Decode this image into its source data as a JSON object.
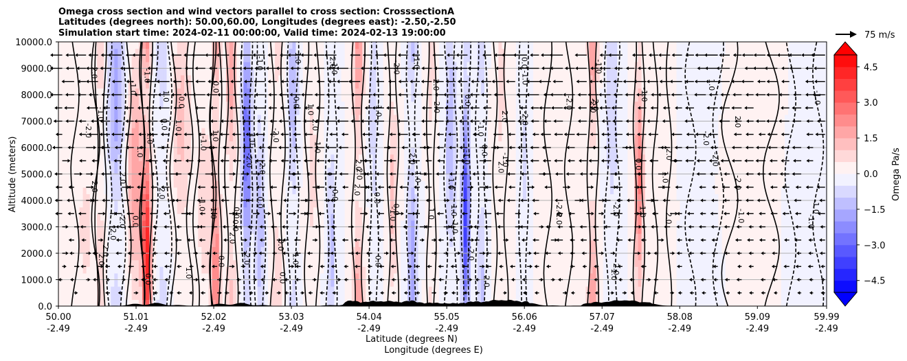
{
  "chart_data": {
    "type": "heatmap",
    "title_lines": [
      "Omega cross section and wind vectors parallel to cross section: CrosssectionA",
      "Latitudes (degrees north): 50.00,60.00, Longitudes (degrees east): -2.50,-2.50",
      "Simulation start time: 2024-02-11 00:00:00, Valid time: 2024-02-13 19:00:00"
    ],
    "xlabel_lines": [
      "Latitude (degrees N)",
      "Longitude (degrees E)"
    ],
    "ylabel": "Altitude (meters)",
    "x_ticks": [
      {
        "lat": "50.00",
        "lon": "-2.49",
        "value": 50.0
      },
      {
        "lat": "51.01",
        "lon": "-2.49",
        "value": 51.01
      },
      {
        "lat": "52.02",
        "lon": "-2.49",
        "value": 52.02
      },
      {
        "lat": "53.03",
        "lon": "-2.49",
        "value": 53.03
      },
      {
        "lat": "54.04",
        "lon": "-2.49",
        "value": 54.04
      },
      {
        "lat": "55.05",
        "lon": "-2.49",
        "value": 55.05
      },
      {
        "lat": "56.06",
        "lon": "-2.49",
        "value": 56.06
      },
      {
        "lat": "57.07",
        "lon": "-2.49",
        "value": 57.07
      },
      {
        "lat": "58.08",
        "lon": "-2.49",
        "value": 58.08
      },
      {
        "lat": "59.09",
        "lon": "-2.49",
        "value": 59.09
      },
      {
        "lat": "59.99",
        "lon": "-2.49",
        "value": 59.99
      }
    ],
    "x_range": [
      50.0,
      59.99
    ],
    "y_ticks": [
      "0.0",
      "1000.0",
      "2000.0",
      "3000.0",
      "4000.0",
      "5000.0",
      "6000.0",
      "7000.0",
      "8000.0",
      "9000.0",
      "10000.0"
    ],
    "y_range": [
      0,
      10000
    ],
    "grid": "horizontal",
    "colorbar": {
      "label": "Omega Pa/s",
      "range": [
        -5.0,
        5.0
      ],
      "extend": "both",
      "tick_labels": [
        "4.5",
        "3.0",
        "1.5",
        "0.0",
        "−1.5",
        "−3.0",
        "−4.5"
      ],
      "tick_values": [
        4.5,
        3.0,
        1.5,
        0.0,
        -1.5,
        -3.0,
        -4.5
      ],
      "levels": 20,
      "colormap": "bwr"
    },
    "wind_key": {
      "label": "75 m/s",
      "speed": 75
    },
    "contour_labels": [
      "0.0",
      "1.0",
      "-1.0",
      "2.0",
      "-2.0"
    ],
    "terrain_peaks_lat": [
      51.2,
      52.3,
      53.9,
      54.5,
      55.6,
      56.0,
      57.2,
      57.5
    ],
    "bands": [
      {
        "lat": 50.35,
        "width": 0.15,
        "value": 0.6
      },
      {
        "lat": 50.55,
        "width": 0.06,
        "value": 1.0
      },
      {
        "lat": 50.75,
        "width": 0.1,
        "value": -1.8
      },
      {
        "lat": 51.0,
        "width": 0.1,
        "value": 2.0
      },
      {
        "lat": 51.15,
        "width": 0.06,
        "value": 4.2
      },
      {
        "lat": 51.35,
        "width": 0.1,
        "value": -0.8
      },
      {
        "lat": 51.6,
        "width": 0.12,
        "value": 1.2
      },
      {
        "lat": 51.9,
        "width": 0.12,
        "value": 0.8
      },
      {
        "lat": 52.05,
        "width": 0.06,
        "value": 2.5
      },
      {
        "lat": 52.25,
        "width": 0.07,
        "value": 1.8
      },
      {
        "lat": 52.45,
        "width": 0.06,
        "value": -3.2
      },
      {
        "lat": 52.62,
        "width": 0.06,
        "value": -1.5
      },
      {
        "lat": 52.85,
        "width": 0.08,
        "value": 0.9
      },
      {
        "lat": 53.05,
        "width": 0.06,
        "value": -1.5
      },
      {
        "lat": 53.3,
        "width": 0.08,
        "value": 0.7
      },
      {
        "lat": 53.55,
        "width": 0.06,
        "value": -1.2
      },
      {
        "lat": 53.9,
        "width": 0.07,
        "value": 2.2
      },
      {
        "lat": 54.1,
        "width": 0.05,
        "value": -1.0
      },
      {
        "lat": 54.35,
        "width": 0.06,
        "value": 1.2
      },
      {
        "lat": 54.6,
        "width": 0.06,
        "value": -2.0
      },
      {
        "lat": 54.85,
        "width": 0.05,
        "value": 0.8
      },
      {
        "lat": 55.1,
        "width": 0.07,
        "value": -1.5
      },
      {
        "lat": 55.3,
        "width": 0.05,
        "value": -4.0
      },
      {
        "lat": 55.5,
        "width": 0.06,
        "value": -1.2
      },
      {
        "lat": 55.75,
        "width": 0.08,
        "value": 0.7
      },
      {
        "lat": 56.05,
        "width": 0.05,
        "value": -0.6
      },
      {
        "lat": 56.5,
        "width": 0.15,
        "value": 0.5
      },
      {
        "lat": 56.95,
        "width": 0.06,
        "value": 2.2
      },
      {
        "lat": 57.2,
        "width": 0.08,
        "value": -1.0
      },
      {
        "lat": 57.55,
        "width": 0.06,
        "value": 2.6
      },
      {
        "lat": 57.85,
        "width": 0.1,
        "value": 0.4
      },
      {
        "lat": 58.4,
        "width": 0.2,
        "value": -0.3
      },
      {
        "lat": 59.0,
        "width": 0.3,
        "value": 0.4
      },
      {
        "lat": 59.7,
        "width": 0.2,
        "value": -0.3
      }
    ]
  }
}
